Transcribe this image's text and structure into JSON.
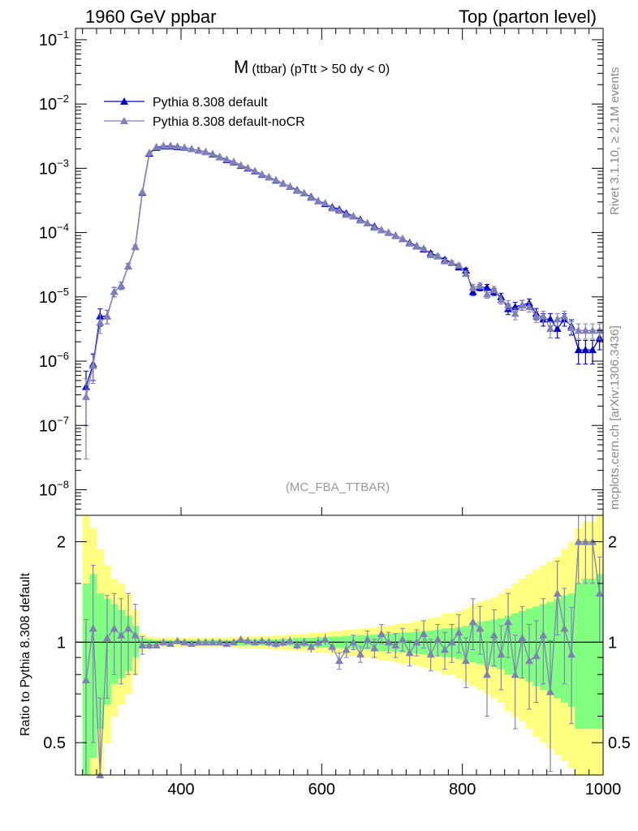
{
  "header": {
    "left": "1960 GeV ppbar",
    "right": "Top (parton level)"
  },
  "plot": {
    "title_main": "M",
    "title_sub": "(ttbar) (pTtt > 50 dy < 0)",
    "watermark": "(MC_FBA_TTBAR)",
    "side_top": "Rivet 3.1.10, ≥ 2.1M events",
    "side_bottom": "mcplots.cern.ch [arXiv:1306.3436]",
    "ratio_ylabel": "Ratio to Pythia 8.308 default"
  },
  "legend": [
    {
      "label": "Pythia 8.308 default",
      "color": "#0000cc"
    },
    {
      "label": "Pythia 8.308 default-noCR",
      "color": "#8080b8"
    }
  ],
  "ticks": {
    "top_y": [
      "10^-8",
      "10^-7",
      "10^-6",
      "10^-5",
      "10^-4",
      "10^-3",
      "10^-2",
      "10^-1"
    ],
    "x": [
      "400",
      "600",
      "800",
      "1000"
    ],
    "ratio_y": [
      "0.5",
      "1",
      "2"
    ]
  },
  "chart_data": {
    "type": "line",
    "xlim": [
      250,
      1000
    ],
    "main": {
      "yscale": "log",
      "ylim": [
        4e-09,
        0.15
      ],
      "x": [
        265,
        275,
        285,
        295,
        305,
        315,
        325,
        335,
        345,
        355,
        365,
        375,
        385,
        395,
        405,
        415,
        425,
        435,
        445,
        455,
        465,
        475,
        485,
        495,
        505,
        515,
        525,
        535,
        545,
        555,
        565,
        575,
        585,
        595,
        605,
        615,
        625,
        635,
        645,
        655,
        665,
        675,
        685,
        695,
        705,
        715,
        725,
        735,
        745,
        755,
        765,
        775,
        785,
        795,
        805,
        815,
        825,
        835,
        845,
        855,
        865,
        875,
        885,
        895,
        905,
        915,
        925,
        935,
        945,
        955,
        965,
        975,
        985,
        995
      ],
      "series": [
        {
          "name": "Pythia 8.308 default",
          "values": [
            4e-07,
            9e-07,
            5e-06,
            5e-06,
            1.2e-05,
            1.5e-05,
            3e-05,
            6e-05,
            0.00042,
            0.0017,
            0.0021,
            0.0022,
            0.0022,
            0.00215,
            0.0021,
            0.002,
            0.0019,
            0.0018,
            0.00165,
            0.0015,
            0.00135,
            0.00125,
            0.0011,
            0.001,
            0.0009,
            0.0008,
            0.00073,
            0.00065,
            0.00058,
            0.00052,
            0.00046,
            0.00041,
            0.00036,
            0.00031,
            0.00028,
            0.00025,
            0.00023,
            0.0002,
            0.00018,
            0.00016,
            0.00014,
            0.000125,
            0.00011,
            0.0001,
            9e-05,
            8e-05,
            7e-05,
            6.2e-05,
            5.5e-05,
            4.8e-05,
            4.3e-05,
            3.8e-05,
            3.4e-05,
            2.9e-05,
            2.6e-05,
            1.2e-05,
            1.4e-05,
            1.4e-05,
            1.2e-05,
            1e-05,
            6.5e-06,
            7e-06,
            7.5e-06,
            8e-06,
            5.5e-06,
            4.5e-06,
            4.5e-06,
            3.2e-06,
            4.5e-06,
            3.5e-06,
            1.5e-06,
            1.5e-06,
            1.5e-06,
            2.3e-06
          ],
          "errors": [
            3e-07,
            4e-07,
            1.5e-06,
            1.2e-06,
            2e-06,
            2e-06,
            3e-06,
            4e-06,
            1.5e-05,
            3e-05,
            3e-05,
            3e-05,
            3e-05,
            3e-05,
            3e-05,
            3e-05,
            2.5e-05,
            2.5e-05,
            2.5e-05,
            2e-05,
            2e-05,
            2e-05,
            1.8e-05,
            1.7e-05,
            1.6e-05,
            1.5e-05,
            1.4e-05,
            1.3e-05,
            1.2e-05,
            1.1e-05,
            1e-05,
            9.5e-06,
            9e-06,
            8.5e-06,
            8e-06,
            7.5e-06,
            7e-06,
            6.5e-06,
            6e-06,
            5.5e-06,
            5e-06,
            4.7e-06,
            4.4e-06,
            4.1e-06,
            3.8e-06,
            3.5e-06,
            3.2e-06,
            3e-06,
            2.8e-06,
            2.6e-06,
            2.5e-06,
            2.3e-06,
            2.2e-06,
            2.1e-06,
            2e-06,
            1.5e-06,
            1.6e-06,
            1.6e-06,
            1.5e-06,
            1.4e-06,
            1.2e-06,
            1.2e-06,
            1.3e-06,
            1.3e-06,
            1.1e-06,
            1e-06,
            1e-06,
            9e-07,
            1e-06,
            9e-07,
            6e-07,
            6e-07,
            6e-07,
            8e-07
          ]
        },
        {
          "name": "Pythia 8.308 default-noCR",
          "values": [
            2.8e-07,
            8.5e-07,
            4e-06,
            5e-06,
            1.2e-05,
            1.5e-05,
            3e-05,
            6e-05,
            0.00043,
            0.00175,
            0.00215,
            0.00225,
            0.00225,
            0.0022,
            0.0021,
            0.002,
            0.0019,
            0.0018,
            0.00168,
            0.00152,
            0.00138,
            0.00127,
            0.00112,
            0.00102,
            0.00091,
            0.00081,
            0.00073,
            0.00066,
            0.00058,
            0.00052,
            0.00045,
            0.00041,
            0.00035,
            0.00031,
            0.00029,
            0.00024,
            0.00022,
            0.00019,
            0.00018,
            0.000155,
            0.00014,
            0.00012,
            0.00011,
            0.0001,
            8.9e-05,
            8.1e-05,
            6.8e-05,
            6.1e-05,
            5.7e-05,
            4.5e-05,
            4.3e-05,
            3.6e-05,
            3.4e-05,
            3.1e-05,
            2.3e-05,
            1.4e-05,
            1.5e-05,
            1.1e-05,
            1.3e-05,
            9e-06,
            7.5e-06,
            5.5e-06,
            7.5e-06,
            7e-06,
            5e-06,
            5e-06,
            3.2e-06,
            4.5e-06,
            5e-06,
            3.3e-06,
            3e-06,
            3e-06,
            3e-06,
            3e-06
          ],
          "errors": [
            2.5e-07,
            4e-07,
            1.3e-06,
            1.2e-06,
            2e-06,
            2e-06,
            3e-06,
            4e-06,
            1.5e-05,
            3e-05,
            3e-05,
            3e-05,
            3e-05,
            3e-05,
            3e-05,
            3e-05,
            2.5e-05,
            2.5e-05,
            2.5e-05,
            2e-05,
            2e-05,
            2e-05,
            1.8e-05,
            1.7e-05,
            1.6e-05,
            1.5e-05,
            1.4e-05,
            1.3e-05,
            1.2e-05,
            1.1e-05,
            1e-05,
            9.5e-06,
            9e-06,
            8.5e-06,
            8e-06,
            7.5e-06,
            7e-06,
            6.5e-06,
            6e-06,
            5.5e-06,
            5e-06,
            4.7e-06,
            4.4e-06,
            4.1e-06,
            3.8e-06,
            3.5e-06,
            3.2e-06,
            3e-06,
            2.8e-06,
            2.6e-06,
            2.5e-06,
            2.3e-06,
            2.2e-06,
            2.1e-06,
            2e-06,
            1.6e-06,
            1.6e-06,
            1.5e-06,
            1.5e-06,
            1.3e-06,
            1.2e-06,
            1.1e-06,
            1.3e-06,
            1.2e-06,
            1e-06,
            1e-06,
            9e-07,
            1e-06,
            1e-06,
            8e-07,
            8e-07,
            8e-07,
            8e-07,
            8e-07
          ]
        }
      ]
    },
    "ratio": {
      "yscale": "log",
      "ylim": [
        0.4,
        2.4
      ],
      "values": [
        0.77,
        1.1,
        0.38,
        1.03,
        1.1,
        1.05,
        1.1,
        1.05,
        0.98,
        0.98,
        0.98,
        1.0,
        0.99,
        1.01,
        1.0,
        0.99,
        1.0,
        1.0,
        1.0,
        1.0,
        0.99,
        1.0,
        1.02,
        1.01,
        1.0,
        1.01,
        1.0,
        0.99,
        1.0,
        1.01,
        0.98,
        1.0,
        0.97,
        1.0,
        1.02,
        0.97,
        0.88,
        0.95,
        1.0,
        0.92,
        1.02,
        0.96,
        1.06,
        1.0,
        0.98,
        1.02,
        0.93,
        1.0,
        1.06,
        0.92,
        1.02,
        0.95,
        1.0,
        1.07,
        0.88,
        1.15,
        1.1,
        0.8,
        1.05,
        0.92,
        1.15,
        0.8,
        1.03,
        0.88,
        0.91,
        1.05,
        0.71,
        1.4,
        1.1,
        0.92,
        2.0,
        2.0,
        2.0,
        1.4
      ],
      "errors": [
        0.4,
        0.6,
        0.3,
        0.35,
        0.3,
        0.3,
        0.3,
        0.25,
        0.06,
        0.03,
        0.02,
        0.02,
        0.02,
        0.02,
        0.02,
        0.02,
        0.02,
        0.02,
        0.02,
        0.02,
        0.02,
        0.02,
        0.02,
        0.02,
        0.02,
        0.02,
        0.03,
        0.03,
        0.03,
        0.03,
        0.03,
        0.03,
        0.04,
        0.04,
        0.04,
        0.04,
        0.05,
        0.05,
        0.05,
        0.05,
        0.06,
        0.06,
        0.07,
        0.07,
        0.08,
        0.08,
        0.08,
        0.09,
        0.1,
        0.1,
        0.11,
        0.12,
        0.13,
        0.14,
        0.15,
        0.2,
        0.18,
        0.2,
        0.2,
        0.2,
        0.25,
        0.25,
        0.25,
        0.25,
        0.25,
        0.3,
        0.3,
        0.35,
        0.35,
        0.35,
        0.5,
        0.5,
        0.5,
        0.4
      ],
      "band_green": [
        [
          0.35,
          1.5
        ],
        [
          0.45,
          1.6
        ],
        [
          0.55,
          1.4
        ],
        [
          0.65,
          1.35
        ],
        [
          0.75,
          1.3
        ],
        [
          0.78,
          1.25
        ],
        [
          0.82,
          1.2
        ],
        [
          0.9,
          1.12
        ],
        [
          0.97,
          1.03
        ],
        [
          0.98,
          1.02
        ],
        [
          0.985,
          1.015
        ],
        [
          0.985,
          1.015
        ],
        [
          0.985,
          1.015
        ],
        [
          0.985,
          1.015
        ],
        [
          0.985,
          1.015
        ],
        [
          0.985,
          1.015
        ],
        [
          0.985,
          1.015
        ],
        [
          0.985,
          1.015
        ],
        [
          0.985,
          1.015
        ],
        [
          0.985,
          1.015
        ],
        [
          0.985,
          1.015
        ],
        [
          0.985,
          1.015
        ],
        [
          0.98,
          1.02
        ],
        [
          0.98,
          1.02
        ],
        [
          0.98,
          1.02
        ],
        [
          0.98,
          1.02
        ],
        [
          0.98,
          1.02
        ],
        [
          0.98,
          1.02
        ],
        [
          0.975,
          1.025
        ],
        [
          0.975,
          1.025
        ],
        [
          0.97,
          1.03
        ],
        [
          0.97,
          1.03
        ],
        [
          0.97,
          1.03
        ],
        [
          0.965,
          1.035
        ],
        [
          0.965,
          1.035
        ],
        [
          0.96,
          1.04
        ],
        [
          0.96,
          1.04
        ],
        [
          0.955,
          1.045
        ],
        [
          0.955,
          1.045
        ],
        [
          0.95,
          1.05
        ],
        [
          0.95,
          1.05
        ],
        [
          0.945,
          1.055
        ],
        [
          0.94,
          1.06
        ],
        [
          0.94,
          1.06
        ],
        [
          0.935,
          1.065
        ],
        [
          0.93,
          1.07
        ],
        [
          0.93,
          1.07
        ],
        [
          0.925,
          1.075
        ],
        [
          0.92,
          1.08
        ],
        [
          0.915,
          1.085
        ],
        [
          0.91,
          1.09
        ],
        [
          0.9,
          1.1
        ],
        [
          0.9,
          1.1
        ],
        [
          0.89,
          1.11
        ],
        [
          0.88,
          1.12
        ],
        [
          0.87,
          1.14
        ],
        [
          0.86,
          1.15
        ],
        [
          0.85,
          1.16
        ],
        [
          0.84,
          1.17
        ],
        [
          0.83,
          1.18
        ],
        [
          0.8,
          1.2
        ],
        [
          0.8,
          1.22
        ],
        [
          0.78,
          1.24
        ],
        [
          0.76,
          1.26
        ],
        [
          0.74,
          1.28
        ],
        [
          0.72,
          1.3
        ],
        [
          0.7,
          1.32
        ],
        [
          0.68,
          1.35
        ],
        [
          0.66,
          1.38
        ],
        [
          0.64,
          1.4
        ],
        [
          0.55,
          1.5
        ],
        [
          0.55,
          1.55
        ],
        [
          0.55,
          1.55
        ],
        [
          0.55,
          1.6
        ]
      ],
      "band_yellow": [
        [
          0.3,
          2.4
        ],
        [
          0.35,
          2.2
        ],
        [
          0.4,
          1.9
        ],
        [
          0.5,
          1.7
        ],
        [
          0.6,
          1.55
        ],
        [
          0.65,
          1.5
        ],
        [
          0.7,
          1.4
        ],
        [
          0.8,
          1.25
        ],
        [
          0.94,
          1.06
        ],
        [
          0.96,
          1.04
        ],
        [
          0.97,
          1.03
        ],
        [
          0.97,
          1.03
        ],
        [
          0.97,
          1.03
        ],
        [
          0.97,
          1.03
        ],
        [
          0.97,
          1.03
        ],
        [
          0.97,
          1.03
        ],
        [
          0.97,
          1.03
        ],
        [
          0.97,
          1.03
        ],
        [
          0.97,
          1.03
        ],
        [
          0.97,
          1.03
        ],
        [
          0.965,
          1.035
        ],
        [
          0.965,
          1.035
        ],
        [
          0.96,
          1.04
        ],
        [
          0.96,
          1.04
        ],
        [
          0.96,
          1.04
        ],
        [
          0.955,
          1.045
        ],
        [
          0.955,
          1.045
        ],
        [
          0.95,
          1.05
        ],
        [
          0.95,
          1.05
        ],
        [
          0.945,
          1.055
        ],
        [
          0.94,
          1.06
        ],
        [
          0.94,
          1.06
        ],
        [
          0.935,
          1.065
        ],
        [
          0.93,
          1.07
        ],
        [
          0.93,
          1.07
        ],
        [
          0.92,
          1.08
        ],
        [
          0.92,
          1.08
        ],
        [
          0.91,
          1.09
        ],
        [
          0.91,
          1.09
        ],
        [
          0.9,
          1.1
        ],
        [
          0.9,
          1.1
        ],
        [
          0.89,
          1.11
        ],
        [
          0.88,
          1.12
        ],
        [
          0.88,
          1.12
        ],
        [
          0.87,
          1.13
        ],
        [
          0.86,
          1.14
        ],
        [
          0.86,
          1.14
        ],
        [
          0.85,
          1.16
        ],
        [
          0.84,
          1.17
        ],
        [
          0.83,
          1.18
        ],
        [
          0.82,
          1.19
        ],
        [
          0.8,
          1.22
        ],
        [
          0.8,
          1.22
        ],
        [
          0.78,
          1.24
        ],
        [
          0.76,
          1.26
        ],
        [
          0.74,
          1.3
        ],
        [
          0.72,
          1.32
        ],
        [
          0.7,
          1.34
        ],
        [
          0.68,
          1.36
        ],
        [
          0.66,
          1.4
        ],
        [
          0.62,
          1.45
        ],
        [
          0.6,
          1.5
        ],
        [
          0.58,
          1.55
        ],
        [
          0.55,
          1.6
        ],
        [
          0.52,
          1.65
        ],
        [
          0.5,
          1.7
        ],
        [
          0.48,
          1.75
        ],
        [
          0.46,
          1.8
        ],
        [
          0.44,
          1.9
        ],
        [
          0.42,
          2.0
        ],
        [
          0.35,
          2.2
        ],
        [
          0.35,
          2.3
        ],
        [
          0.35,
          2.3
        ],
        [
          0.35,
          2.4
        ]
      ]
    }
  }
}
